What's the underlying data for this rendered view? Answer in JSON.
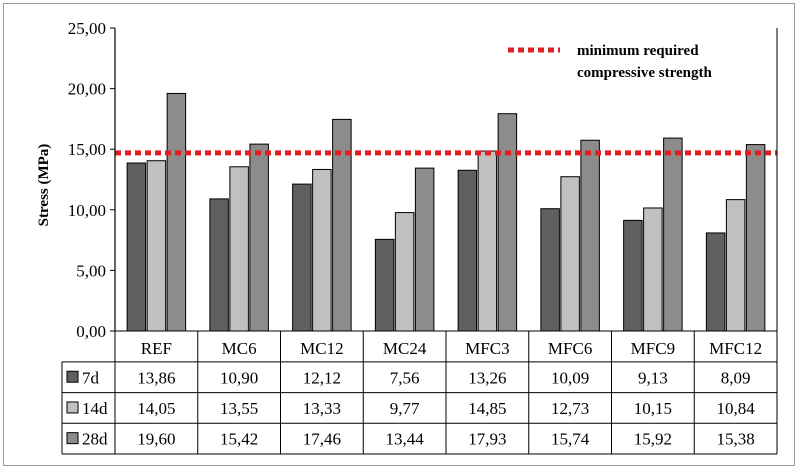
{
  "chart_data": {
    "type": "bar",
    "ylabel": "Stress (MPa)",
    "ylim": [
      0,
      25
    ],
    "yticks": [
      "0,00",
      "5,00",
      "10,00",
      "15,00",
      "20,00",
      "25,00"
    ],
    "categories": [
      "REF",
      "MC6",
      "MC12",
      "MC24",
      "MFC3",
      "MFC6",
      "MFC9",
      "MFC12"
    ],
    "series": [
      {
        "name": "7d",
        "color": "#606060",
        "values": [
          13.86,
          10.9,
          12.12,
          7.56,
          13.26,
          10.09,
          9.13,
          8.09
        ],
        "labels": [
          "13,86",
          "10,90",
          "12,12",
          "7,56",
          "13,26",
          "10,09",
          "9,13",
          "8,09"
        ]
      },
      {
        "name": "14d",
        "color": "#c0c0c0",
        "values": [
          14.05,
          13.55,
          13.33,
          9.77,
          14.85,
          12.73,
          10.15,
          10.84
        ],
        "labels": [
          "14,05",
          "13,55",
          "13,33",
          "9,77",
          "14,85",
          "12,73",
          "10,15",
          "10,84"
        ]
      },
      {
        "name": "28d",
        "color": "#8c8c8c",
        "values": [
          19.6,
          15.42,
          17.46,
          13.44,
          17.93,
          15.74,
          15.92,
          15.38
        ],
        "labels": [
          "19,60",
          "15,42",
          "17,46",
          "13,44",
          "17,93",
          "15,74",
          "15,92",
          "15,38"
        ]
      }
    ],
    "reference_line": {
      "value": 14.7,
      "color": "#e02020",
      "label_line1": "minimum required",
      "label_line2": "compressive strength"
    },
    "grid": false,
    "legend_position": "top-right"
  }
}
